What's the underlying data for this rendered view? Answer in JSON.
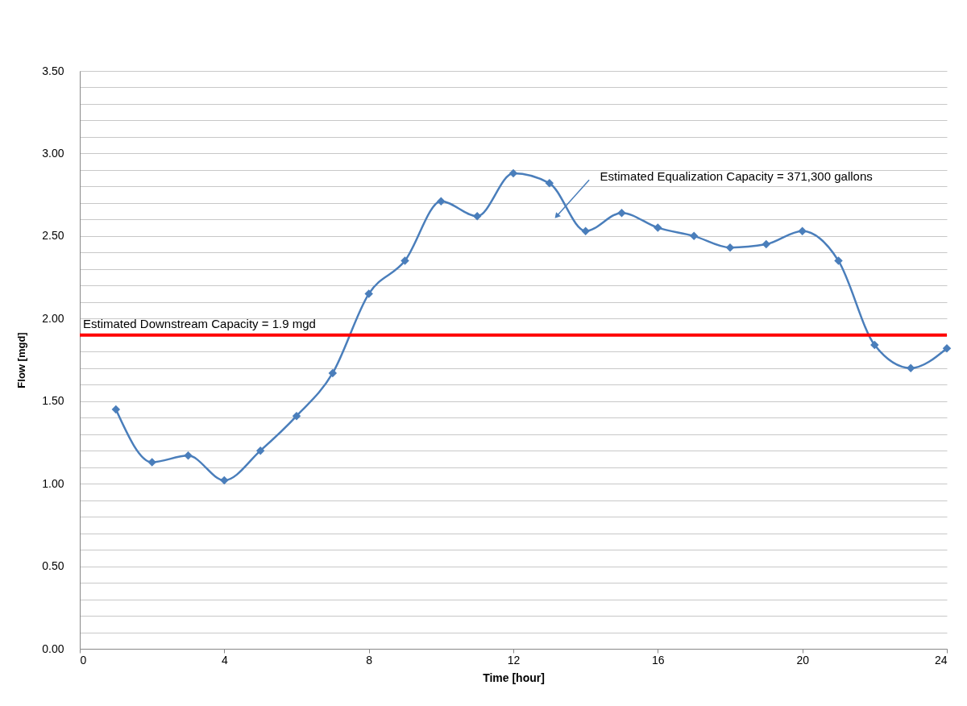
{
  "chart_data": {
    "type": "line",
    "xlabel": "Time [hour]",
    "ylabel": "Flow [mgd]",
    "x": [
      1,
      2,
      3,
      4,
      5,
      6,
      7,
      8,
      9,
      10,
      11,
      12,
      13,
      14,
      15,
      16,
      17,
      18,
      19,
      20,
      21,
      22,
      23,
      24
    ],
    "values": [
      1.45,
      1.13,
      1.17,
      1.02,
      1.2,
      1.41,
      1.67,
      2.15,
      2.35,
      2.71,
      2.62,
      2.88,
      2.82,
      2.53,
      2.64,
      2.55,
      2.5,
      2.43,
      2.45,
      2.53,
      2.35,
      1.84,
      1.7,
      1.82
    ],
    "color": "#4a7ebb",
    "marker": "diamond",
    "line_style": "solid",
    "xlim": [
      0,
      24
    ],
    "xticks": [
      0,
      4,
      8,
      12,
      16,
      20,
      24
    ],
    "ylim": [
      0,
      3.5
    ],
    "yticks": [
      {
        "value": 0,
        "label": "0.00"
      },
      {
        "value": 0.1,
        "label": null
      },
      {
        "value": 0.2,
        "label": null
      },
      {
        "value": 0.3,
        "label": null
      },
      {
        "value": 0.4,
        "label": null
      },
      {
        "value": 0.5,
        "label": "0.50"
      },
      {
        "value": 0.6,
        "label": null
      },
      {
        "value": 0.7,
        "label": null
      },
      {
        "value": 0.8,
        "label": null
      },
      {
        "value": 0.9,
        "label": null
      },
      {
        "value": 1,
        "label": "1.00"
      },
      {
        "value": 1.1,
        "label": null
      },
      {
        "value": 1.2,
        "label": null
      },
      {
        "value": 1.3,
        "label": null
      },
      {
        "value": 1.4,
        "label": null
      },
      {
        "value": 1.5,
        "label": "1.50"
      },
      {
        "value": 1.6,
        "label": null
      },
      {
        "value": 1.7,
        "label": null
      },
      {
        "value": 1.8,
        "label": null
      },
      {
        "value": 1.9,
        "label": null
      },
      {
        "value": 2,
        "label": "2.00"
      },
      {
        "value": 2.1,
        "label": null
      },
      {
        "value": 2.2,
        "label": null
      },
      {
        "value": 2.3,
        "label": null
      },
      {
        "value": 2.4,
        "label": null
      },
      {
        "value": 2.5,
        "label": "2.50"
      },
      {
        "value": 2.6,
        "label": null
      },
      {
        "value": 2.7,
        "label": null
      },
      {
        "value": 2.8,
        "label": null
      },
      {
        "value": 2.9,
        "label": null
      },
      {
        "value": 3,
        "label": "3.00"
      },
      {
        "value": 3.1,
        "label": null
      },
      {
        "value": 3.2,
        "label": null
      },
      {
        "value": 3.3,
        "label": null
      },
      {
        "value": 3.4,
        "label": null
      },
      {
        "value": 3.5,
        "label": "3.50"
      }
    ],
    "grid": "y",
    "ref_lines": [
      {
        "axis": "y",
        "value": 1.9,
        "label": "Estimated Downstream Capacity = 1.9 mgd",
        "color": "#ff0000"
      }
    ],
    "annotations": [
      {
        "text": "Estimated Equalization Capacity = 371,300 gallons",
        "x": 13.2,
        "y": 2.62
      }
    ]
  }
}
